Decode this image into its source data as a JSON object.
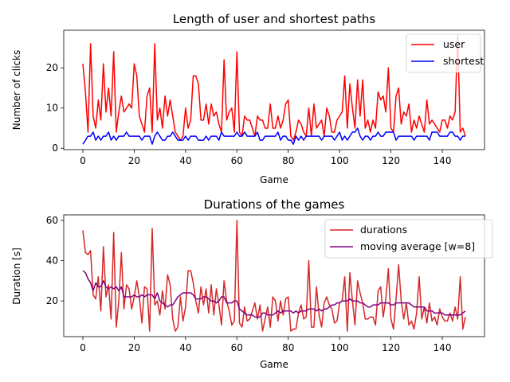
{
  "chart_data": [
    {
      "type": "line",
      "title": "Length of user and shortest paths",
      "xlabel": "Game",
      "ylabel": "Number of clicks",
      "xlim": [
        -7.45,
        156.45
      ],
      "ylim": [
        -0.35,
        29.35
      ],
      "xticks": [
        0,
        20,
        40,
        60,
        80,
        100,
        120,
        140
      ],
      "yticks": [
        0,
        10,
        20
      ],
      "grid": false,
      "legend": "top-right",
      "x": [
        0,
        1,
        2,
        3,
        4,
        5,
        6,
        7,
        8,
        9,
        10,
        11,
        12,
        13,
        14,
        15,
        16,
        17,
        18,
        19,
        20,
        21,
        22,
        23,
        24,
        25,
        26,
        27,
        28,
        29,
        30,
        31,
        32,
        33,
        34,
        35,
        36,
        37,
        38,
        39,
        40,
        41,
        42,
        43,
        44,
        45,
        46,
        47,
        48,
        49,
        50,
        51,
        52,
        53,
        54,
        55,
        56,
        57,
        58,
        59,
        60,
        61,
        62,
        63,
        64,
        65,
        66,
        67,
        68,
        69,
        70,
        71,
        72,
        73,
        74,
        75,
        76,
        77,
        78,
        79,
        80,
        81,
        82,
        83,
        84,
        85,
        86,
        87,
        88,
        89,
        90,
        91,
        92,
        93,
        94,
        95,
        96,
        97,
        98,
        99,
        100,
        101,
        102,
        103,
        104,
        105,
        106,
        107,
        108,
        109,
        110,
        111,
        112,
        113,
        114,
        115,
        116,
        117,
        118,
        119,
        120,
        121,
        122,
        123,
        124,
        125,
        126,
        127,
        128,
        129,
        130,
        131,
        132,
        133,
        134,
        135,
        136,
        137,
        138,
        139,
        140,
        141,
        142,
        143,
        144,
        145,
        146,
        147,
        148,
        149
      ],
      "series": [
        {
          "name": "user",
          "color": "#ff0000",
          "values": [
            21,
            14,
            4,
            26,
            8,
            5,
            12,
            7,
            21,
            9,
            15,
            8,
            24,
            4,
            9,
            13,
            9,
            10,
            11,
            10,
            21,
            18,
            8,
            6,
            4,
            13,
            15,
            4,
            26,
            7,
            10,
            5,
            13,
            8,
            12,
            8,
            4,
            3,
            2,
            3,
            10,
            5,
            7,
            18,
            18,
            16,
            7,
            7,
            11,
            6,
            11,
            8,
            9,
            6,
            4,
            22,
            7,
            9,
            10,
            4,
            24,
            4,
            3,
            8,
            7,
            7,
            5,
            3,
            8,
            7,
            7,
            5,
            5,
            11,
            5,
            5,
            8,
            5,
            7,
            11,
            12,
            3,
            2,
            4,
            7,
            6,
            4,
            3,
            10,
            3,
            11,
            5,
            6,
            7,
            3,
            10,
            8,
            4,
            4,
            7,
            8,
            9,
            18,
            5,
            16,
            10,
            5,
            17,
            8,
            17,
            5,
            7,
            4,
            7,
            5,
            14,
            12,
            13,
            9,
            20,
            5,
            4,
            13,
            15,
            6,
            9,
            8,
            11,
            4,
            7,
            5,
            8,
            6,
            4,
            12,
            6,
            7,
            6,
            5,
            4,
            7,
            7,
            5,
            8,
            7,
            9,
            28,
            4,
            5,
            3
          ],
          "y_note": ""
        },
        {
          "name": "shortest",
          "color": "#0000ff",
          "values": [
            1,
            2,
            3,
            3,
            4,
            2,
            3,
            2,
            3,
            3,
            4,
            2,
            3,
            2,
            3,
            3,
            3,
            4,
            3,
            3,
            3,
            3,
            3,
            2,
            3,
            3,
            3,
            1,
            3,
            4,
            3,
            2,
            2,
            3,
            3,
            4,
            3,
            2,
            2,
            2,
            3,
            2,
            3,
            3,
            3,
            2,
            2,
            2,
            3,
            2,
            3,
            3,
            3,
            2,
            4,
            3,
            3,
            3,
            3,
            3,
            4,
            3,
            3,
            4,
            3,
            3,
            3,
            3,
            4,
            2,
            2,
            3,
            3,
            3,
            3,
            3,
            4,
            2,
            3,
            3,
            2,
            2,
            1,
            3,
            2,
            3,
            2,
            3,
            3,
            3,
            3,
            3,
            3,
            2,
            3,
            3,
            3,
            3,
            2,
            3,
            4,
            2,
            3,
            2,
            3,
            4,
            4,
            5,
            3,
            2,
            3,
            3,
            2,
            3,
            3,
            4,
            3,
            3,
            4,
            4,
            4,
            4,
            2,
            3,
            3,
            3,
            3,
            3,
            3,
            2,
            3,
            3,
            3,
            3,
            3,
            2,
            4,
            4,
            4,
            3,
            3,
            3,
            3,
            4,
            4,
            3,
            3,
            2,
            3,
            3
          ]
        }
      ]
    },
    {
      "type": "line",
      "title": "Durations of the games",
      "xlabel": "Game",
      "ylabel": "Duration [s]",
      "xlim": [
        -7.45,
        156.45
      ],
      "ylim": [
        2.25,
        62.75
      ],
      "xticks": [
        0,
        20,
        40,
        60,
        80,
        100,
        120,
        140
      ],
      "yticks": [
        20,
        40,
        60
      ],
      "grid": false,
      "legend": "top-right",
      "x": [
        0,
        1,
        2,
        3,
        4,
        5,
        6,
        7,
        8,
        9,
        10,
        11,
        12,
        13,
        14,
        15,
        16,
        17,
        18,
        19,
        20,
        21,
        22,
        23,
        24,
        25,
        26,
        27,
        28,
        29,
        30,
        31,
        32,
        33,
        34,
        35,
        36,
        37,
        38,
        39,
        40,
        41,
        42,
        43,
        44,
        45,
        46,
        47,
        48,
        49,
        50,
        51,
        52,
        53,
        54,
        55,
        56,
        57,
        58,
        59,
        60,
        61,
        62,
        63,
        64,
        65,
        66,
        67,
        68,
        69,
        70,
        71,
        72,
        73,
        74,
        75,
        76,
        77,
        78,
        79,
        80,
        81,
        82,
        83,
        84,
        85,
        86,
        87,
        88,
        89,
        90,
        91,
        92,
        93,
        94,
        95,
        96,
        97,
        98,
        99,
        100,
        101,
        102,
        103,
        104,
        105,
        106,
        107,
        108,
        109,
        110,
        111,
        112,
        113,
        114,
        115,
        116,
        117,
        118,
        119,
        120,
        121,
        122,
        123,
        124,
        125,
        126,
        127,
        128,
        129,
        130,
        131,
        132,
        133,
        134,
        135,
        136,
        137,
        138,
        139,
        140,
        141,
        142,
        143,
        144,
        145,
        146,
        147,
        148,
        149
      ],
      "series": [
        {
          "name": "durations",
          "color": "#d62728",
          "values": [
            55,
            44,
            43,
            45,
            23,
            21,
            32,
            15,
            47,
            22,
            28,
            11,
            54,
            7,
            20,
            44,
            16,
            28,
            26,
            16,
            22,
            30,
            22,
            9,
            27,
            26,
            5,
            56,
            18,
            20,
            13,
            25,
            16,
            33,
            28,
            11,
            5,
            7,
            22,
            10,
            17,
            35,
            35,
            29,
            20,
            14,
            27,
            18,
            26,
            14,
            28,
            13,
            26,
            18,
            8,
            30,
            20,
            15,
            8,
            10,
            60,
            9,
            7,
            17,
            10,
            11,
            15,
            19,
            11,
            18,
            5,
            11,
            17,
            7,
            22,
            20,
            10,
            20,
            13,
            21,
            22,
            5,
            6,
            6,
            14,
            18,
            11,
            12,
            40,
            7,
            7,
            27,
            13,
            7,
            19,
            22,
            18,
            16,
            9,
            10,
            19,
            20,
            32,
            5,
            34,
            20,
            8,
            30,
            24,
            19,
            11,
            11,
            12,
            12,
            8,
            25,
            27,
            12,
            21,
            36,
            11,
            6,
            21,
            38,
            20,
            11,
            19,
            8,
            10,
            6,
            14,
            32,
            11,
            17,
            9,
            19,
            10,
            12,
            8,
            16,
            12,
            10,
            10,
            14,
            10,
            17,
            11,
            32,
            6,
            12
          ]
        },
        {
          "name": "moving average [w=8]",
          "color": "#800080",
          "values": [
            35,
            34,
            31,
            29,
            25,
            29,
            27,
            27,
            30,
            27,
            26,
            27,
            26,
            27,
            25,
            27,
            22,
            22,
            22,
            22,
            23,
            22,
            22,
            23,
            22,
            23,
            23,
            23,
            21,
            24,
            20,
            19,
            18,
            17,
            18,
            18,
            20,
            22,
            23,
            24,
            24,
            24,
            24,
            23,
            21,
            21,
            21,
            22,
            22,
            21,
            20,
            20,
            19,
            20,
            22,
            22,
            19,
            19,
            19,
            20,
            20,
            16,
            15,
            14,
            13,
            13,
            13,
            12,
            12,
            12,
            14,
            14,
            13,
            13,
            13,
            14,
            15,
            14,
            15,
            15,
            15,
            15,
            14,
            15,
            14,
            15,
            15,
            15,
            16,
            16,
            16,
            15,
            16,
            15,
            16,
            16,
            17,
            18,
            18,
            19,
            19,
            20,
            20,
            20,
            21,
            20,
            20,
            20,
            19,
            19,
            18,
            17,
            17,
            18,
            18,
            18,
            19,
            19,
            19,
            19,
            18,
            18,
            19,
            19,
            19,
            19,
            19,
            19,
            18,
            17,
            17,
            17,
            17,
            17,
            15,
            15,
            15,
            14,
            14,
            14,
            14,
            13,
            13,
            13,
            13,
            13,
            13,
            13,
            14,
            15
          ]
        }
      ]
    }
  ]
}
